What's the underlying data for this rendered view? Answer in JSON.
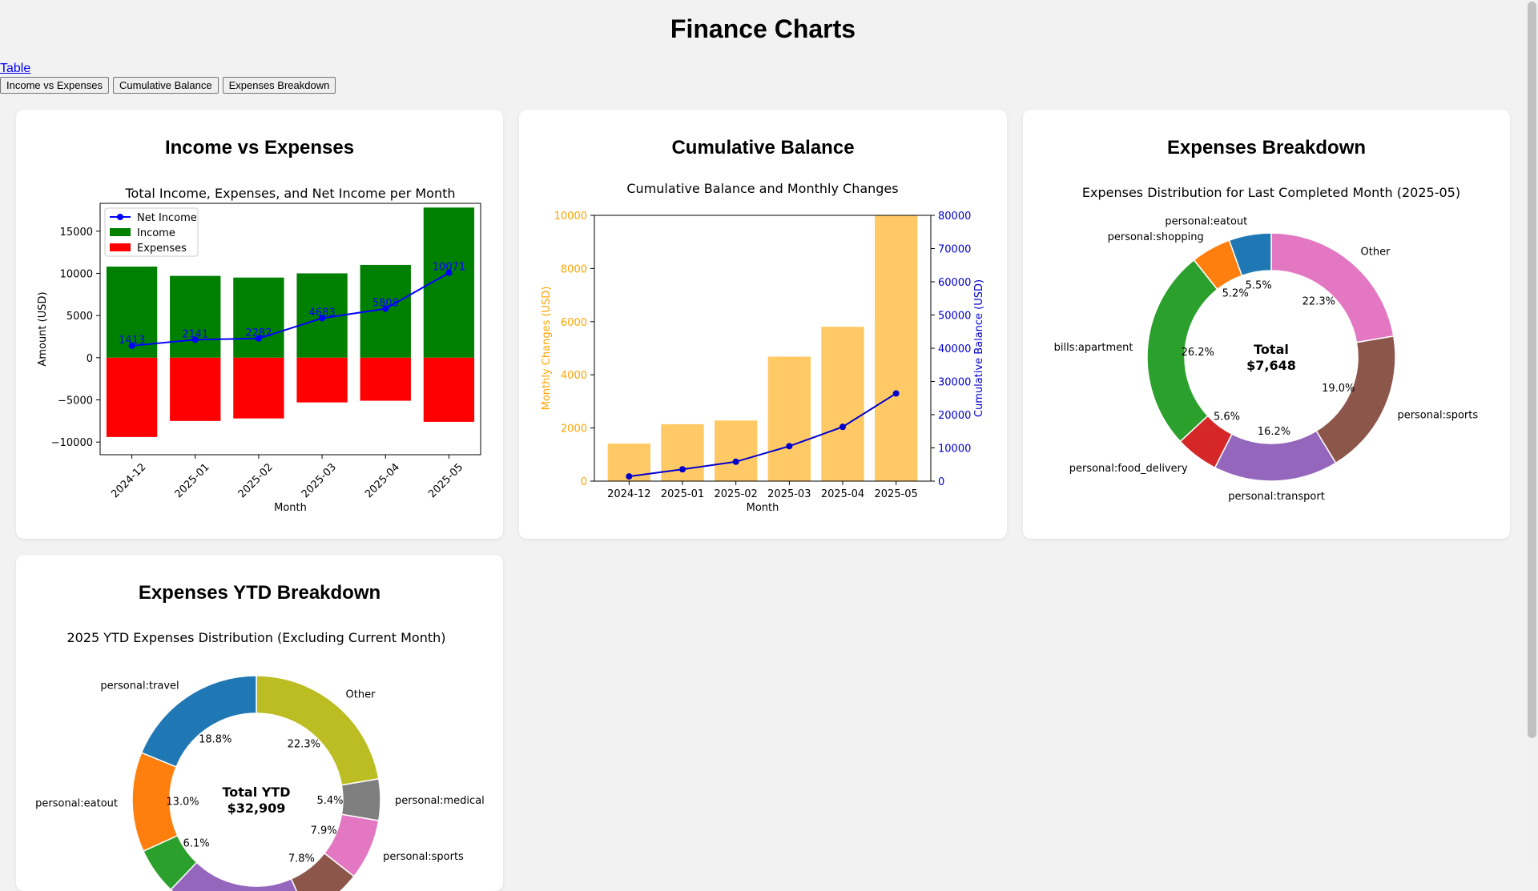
{
  "page": {
    "title": "Finance Charts",
    "table_link": "Table",
    "buttons": [
      "Income vs Expenses",
      "Cumulative Balance",
      "Expenses Breakdown"
    ]
  },
  "cards": {
    "income": "Income vs Expenses",
    "cumulative": "Cumulative Balance",
    "breakdown": "Expenses Breakdown",
    "ytd": "Expenses YTD Breakdown"
  },
  "chart_data": [
    {
      "type": "bar",
      "title": "Total Income, Expenses, and Net Income per Month",
      "xlabel": "Month",
      "ylabel": "Amount (USD)",
      "categories": [
        "2024-12",
        "2025-01",
        "2025-02",
        "2025-03",
        "2025-04",
        "2025-05"
      ],
      "series": [
        {
          "name": "Income",
          "values": [
            10800,
            9700,
            9500,
            10000,
            11000,
            17800
          ],
          "color": "#008000"
        },
        {
          "name": "Expenses",
          "values": [
            -9400,
            -7500,
            -7200,
            -5300,
            -5100,
            -7600
          ],
          "color": "#ff0000"
        },
        {
          "name": "Net Income",
          "values": [
            1413,
            2141,
            2282,
            4683,
            5808,
            10071
          ],
          "color": "#0000ff",
          "kind": "line",
          "labels": [
            "1413",
            "2141",
            "2282",
            "4683",
            "5808",
            "10071"
          ]
        }
      ],
      "ylim": [
        -11500,
        18300
      ],
      "yticks": [
        -10000,
        -5000,
        0,
        5000,
        10000,
        15000
      ],
      "ytick_labels": [
        "−10000",
        "−5000",
        "0",
        "5000",
        "10000",
        "15000"
      ],
      "legend": "top-left",
      "grid": false
    },
    {
      "type": "bar",
      "title": "Cumulative Balance and Monthly Changes",
      "xlabel": "Month",
      "ylabel": "Monthly Changes (USD)",
      "y2label": "Cumulative Balance (USD)",
      "categories": [
        "2024-12",
        "2025-01",
        "2025-02",
        "2025-03",
        "2025-04",
        "2025-05"
      ],
      "series": [
        {
          "name": "Monthly Changes",
          "values": [
            1413,
            2141,
            2282,
            4683,
            5808,
            10071
          ],
          "color": "#ffc966",
          "axis": "left"
        },
        {
          "name": "Cumulative Balance",
          "values": [
            1413,
            3554,
            5836,
            10519,
            16327,
            26398
          ],
          "color": "#0000cd",
          "kind": "line",
          "axis": "right"
        }
      ],
      "ylim": [
        0,
        10000
      ],
      "yticks": [
        0,
        2000,
        4000,
        6000,
        8000,
        10000
      ],
      "y2lim": [
        0,
        80000
      ],
      "y2ticks": [
        0,
        10000,
        20000,
        30000,
        40000,
        50000,
        60000,
        70000,
        80000
      ],
      "grid": false
    },
    {
      "type": "pie",
      "title": "Expenses Distribution for Last Completed Month (2025-05)",
      "center_label": [
        "Total",
        "$7,648"
      ],
      "slices": [
        {
          "label": "Other",
          "pct": 22.3,
          "pct_label": "22.3%",
          "color": "#e377c2"
        },
        {
          "label": "personal:sports",
          "pct": 19.0,
          "pct_label": "19.0%",
          "color": "#8c564b"
        },
        {
          "label": "personal:transport",
          "pct": 16.2,
          "pct_label": "16.2%",
          "color": "#9467bd"
        },
        {
          "label": "personal:food_delivery",
          "pct": 5.6,
          "pct_label": "5.6%",
          "color": "#d62728"
        },
        {
          "label": "bills:apartment",
          "pct": 26.2,
          "pct_label": "26.2%",
          "color": "#2ca02c"
        },
        {
          "label": "personal:shopping",
          "pct": 5.2,
          "pct_label": "5.2%",
          "color": "#ff7f0e"
        },
        {
          "label": "personal:eatout",
          "pct": 5.5,
          "pct_label": "5.5%",
          "color": "#1f77b4"
        }
      ]
    },
    {
      "type": "pie",
      "title": "2025 YTD Expenses Distribution (Excluding Current Month)",
      "center_label": [
        "Total YTD",
        "$32,909"
      ],
      "slices": [
        {
          "label": "Other",
          "pct": 22.3,
          "pct_label": "22.3%",
          "color": "#bcbd22"
        },
        {
          "label": "personal:medical",
          "pct": 5.4,
          "pct_label": "5.4%",
          "color": "#7f7f7f"
        },
        {
          "label": "personal:sports",
          "pct": 7.9,
          "pct_label": "7.9%",
          "color": "#e377c2"
        },
        {
          "label": "",
          "pct": 7.8,
          "pct_label": "7.8%",
          "color": "#8c564b"
        },
        {
          "label": "",
          "pct": 18.7,
          "pct_label": "",
          "color": "#9467bd"
        },
        {
          "label": "",
          "pct": 6.1,
          "pct_label": "6.1%",
          "color": "#2ca02c"
        },
        {
          "label": "personal:eatout",
          "pct": 13.0,
          "pct_label": "13.0%",
          "color": "#ff7f0e"
        },
        {
          "label": "personal:travel",
          "pct": 18.8,
          "pct_label": "18.8%",
          "color": "#1f77b4"
        }
      ]
    }
  ]
}
